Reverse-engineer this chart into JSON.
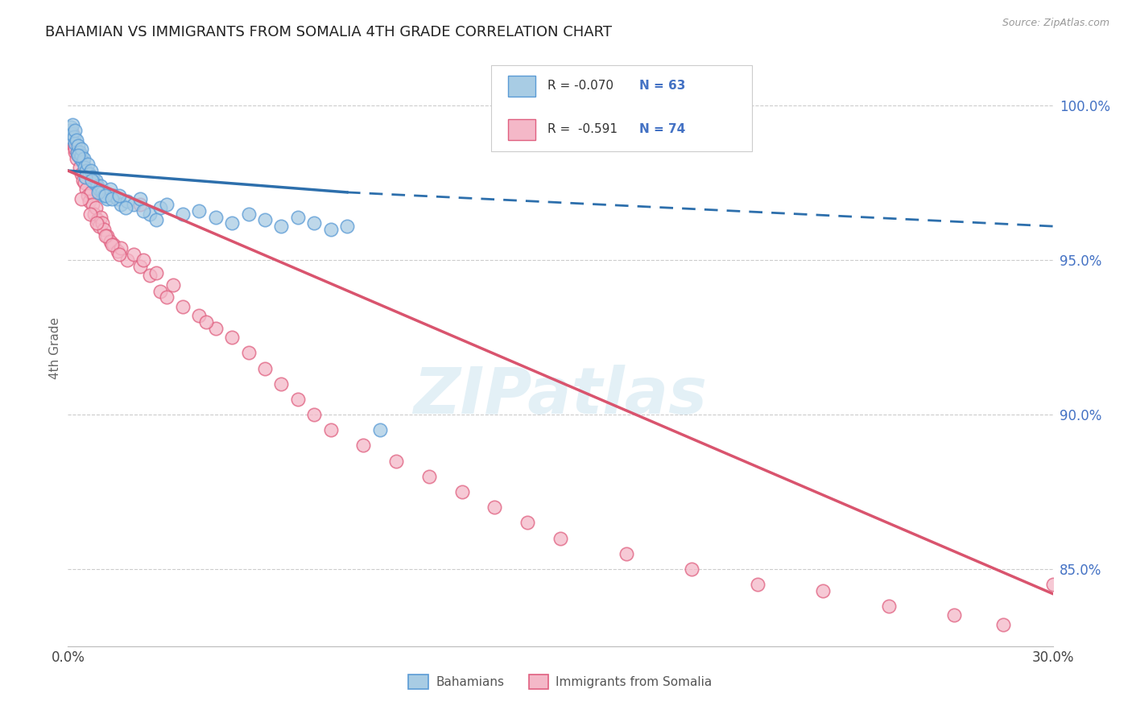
{
  "title": "BAHAMIAN VS IMMIGRANTS FROM SOMALIA 4TH GRADE CORRELATION CHART",
  "source": "Source: ZipAtlas.com",
  "ylabel": "4th Grade",
  "watermark": "ZIPatlas",
  "legend_blue_r": "R = -0.070",
  "legend_blue_n": "N = 63",
  "legend_pink_r": "R =  -0.591",
  "legend_pink_n": "N = 74",
  "legend_blue_label": "Bahamians",
  "legend_pink_label": "Immigrants from Somalia",
  "xmin": 0.0,
  "xmax": 30.0,
  "ymin": 82.5,
  "ymax": 101.8,
  "right_yticks": [
    85.0,
    90.0,
    95.0,
    100.0
  ],
  "blue_color": "#a8cce4",
  "pink_color": "#f4b8c8",
  "blue_edge_color": "#5b9bd5",
  "pink_edge_color": "#e06080",
  "blue_line_color": "#2d6fac",
  "pink_line_color": "#d9546e",
  "right_tick_color": "#4472c4",
  "blue_scatter": {
    "x": [
      0.05,
      0.08,
      0.1,
      0.12,
      0.15,
      0.18,
      0.2,
      0.22,
      0.25,
      0.28,
      0.3,
      0.35,
      0.38,
      0.4,
      0.42,
      0.45,
      0.48,
      0.5,
      0.55,
      0.6,
      0.65,
      0.7,
      0.75,
      0.8,
      0.85,
      0.9,
      0.95,
      1.0,
      1.05,
      1.1,
      1.2,
      1.3,
      1.4,
      1.5,
      1.6,
      1.8,
      2.0,
      2.2,
      2.5,
      2.8,
      3.0,
      3.5,
      4.0,
      4.5,
      5.0,
      5.5,
      6.0,
      6.5,
      7.0,
      7.5,
      8.0,
      8.5,
      0.32,
      0.52,
      0.72,
      0.92,
      1.15,
      1.35,
      1.55,
      1.75,
      2.3,
      2.7,
      9.5
    ],
    "y": [
      99.0,
      99.2,
      99.3,
      99.1,
      99.4,
      99.0,
      98.8,
      99.2,
      98.9,
      98.5,
      98.7,
      98.5,
      98.3,
      98.4,
      98.6,
      98.2,
      98.3,
      98.0,
      97.9,
      98.1,
      97.8,
      97.9,
      97.7,
      97.5,
      97.6,
      97.4,
      97.3,
      97.4,
      97.2,
      97.1,
      97.0,
      97.3,
      97.1,
      97.0,
      96.8,
      96.9,
      96.8,
      97.0,
      96.5,
      96.7,
      96.8,
      96.5,
      96.6,
      96.4,
      96.2,
      96.5,
      96.3,
      96.1,
      96.4,
      96.2,
      96.0,
      96.1,
      98.4,
      97.7,
      97.6,
      97.2,
      97.1,
      97.0,
      97.1,
      96.7,
      96.6,
      96.3,
      89.5
    ]
  },
  "pink_scatter": {
    "x": [
      0.05,
      0.08,
      0.1,
      0.12,
      0.15,
      0.18,
      0.2,
      0.22,
      0.25,
      0.28,
      0.3,
      0.35,
      0.4,
      0.45,
      0.5,
      0.55,
      0.6,
      0.65,
      0.7,
      0.75,
      0.8,
      0.85,
      0.9,
      0.95,
      1.0,
      1.05,
      1.1,
      1.2,
      1.3,
      1.4,
      1.5,
      1.6,
      1.8,
      2.0,
      2.2,
      2.5,
      2.8,
      3.0,
      3.5,
      4.0,
      4.5,
      5.0,
      5.5,
      6.0,
      6.5,
      7.0,
      7.5,
      8.0,
      9.0,
      10.0,
      11.0,
      12.0,
      13.0,
      14.0,
      15.0,
      17.0,
      19.0,
      21.0,
      23.0,
      25.0,
      27.0,
      28.5,
      30.0,
      0.42,
      0.68,
      0.88,
      1.15,
      1.35,
      1.55,
      2.3,
      2.7,
      3.2,
      4.2,
      2.2
    ],
    "y": [
      99.2,
      99.0,
      98.8,
      98.9,
      99.1,
      98.7,
      98.5,
      98.6,
      98.3,
      98.5,
      98.4,
      98.0,
      97.8,
      97.6,
      97.5,
      97.3,
      97.1,
      96.9,
      97.2,
      96.8,
      96.5,
      96.7,
      96.3,
      96.1,
      96.4,
      96.2,
      96.0,
      95.8,
      95.6,
      95.5,
      95.3,
      95.4,
      95.0,
      95.2,
      94.8,
      94.5,
      94.0,
      93.8,
      93.5,
      93.2,
      92.8,
      92.5,
      92.0,
      91.5,
      91.0,
      90.5,
      90.0,
      89.5,
      89.0,
      88.5,
      88.0,
      87.5,
      87.0,
      86.5,
      86.0,
      85.5,
      85.0,
      84.5,
      84.3,
      83.8,
      83.5,
      83.2,
      84.5,
      97.0,
      96.5,
      96.2,
      95.8,
      95.5,
      95.2,
      95.0,
      94.6,
      94.2,
      93.0,
      96.8
    ]
  },
  "blue_trend_x": [
    0.0,
    8.5,
    30.0
  ],
  "blue_trend_y": [
    97.9,
    97.2,
    96.1
  ],
  "blue_solid_end_idx": 1,
  "pink_trend_x": [
    0.0,
    30.0
  ],
  "pink_trend_y": [
    97.9,
    84.2
  ]
}
